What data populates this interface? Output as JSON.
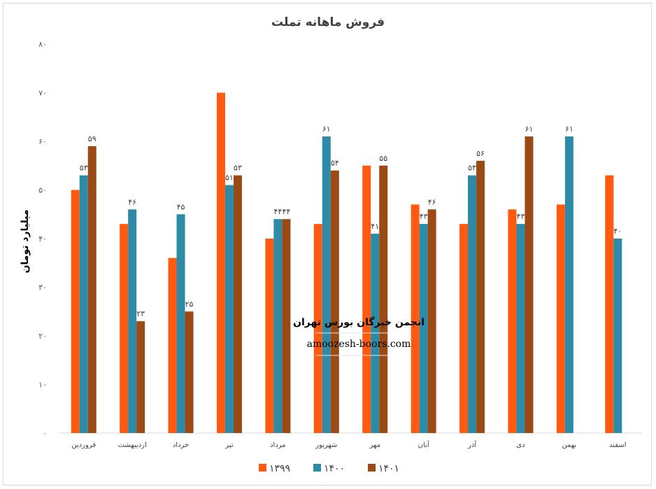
{
  "chart_data": {
    "type": "bar",
    "title": "فروش ماهانه تملت",
    "ylabel": "میلیارد تومان",
    "xlabel": "",
    "ylim": [
      0,
      80
    ],
    "yticks": [
      0,
      10,
      20,
      30,
      40,
      50,
      60,
      70,
      80
    ],
    "ytick_labels": [
      "۰",
      "۱۰",
      "۲۰",
      "۳۰",
      "۴۰",
      "۵۰",
      "۶۰",
      "۷۰",
      "۸۰"
    ],
    "grid": false,
    "legend_position": "bottom",
    "categories": [
      "فروردین",
      "اردیبهشت",
      "خرداد",
      "تیر",
      "مرداد",
      "شهریور",
      "مهر",
      "آبان",
      "آذر",
      "دی",
      "بهمن",
      "اسفند"
    ],
    "series": [
      {
        "name": "۱۳۹۹",
        "color": "#ff5a0f",
        "values": [
          50,
          43,
          36,
          70,
          40,
          43,
          55,
          47,
          43,
          46,
          47,
          53
        ],
        "labels": [
          null,
          null,
          null,
          null,
          null,
          null,
          null,
          null,
          null,
          null,
          null,
          null
        ]
      },
      {
        "name": "۱۴۰۰",
        "color": "#2e8ba8",
        "values": [
          53,
          46,
          45,
          51,
          44,
          61,
          41,
          43,
          53,
          43,
          61,
          40
        ],
        "labels": [
          "۵۳",
          "۴۶",
          "۴۵",
          "۵۱",
          "۴۴",
          "۶۱",
          "۴۱",
          "۴۳",
          "۵۳",
          "۴۳",
          "۶۱",
          "۴۰"
        ]
      },
      {
        "name": "۱۴۰۱",
        "color": "#9c4a15",
        "values": [
          59,
          23,
          25,
          53,
          44,
          54,
          55,
          46,
          56,
          61,
          null,
          null
        ],
        "labels": [
          "۵۹",
          "۲۳",
          "۲۵",
          "۵۳",
          "۴۴",
          "۵۴",
          "۵۵",
          "۴۶",
          "۵۶",
          "۶۱",
          null,
          null
        ]
      }
    ]
  },
  "watermark": {
    "title": "انجمن خبرگان بورس تهران",
    "url": "amoozesh-boors.com"
  }
}
